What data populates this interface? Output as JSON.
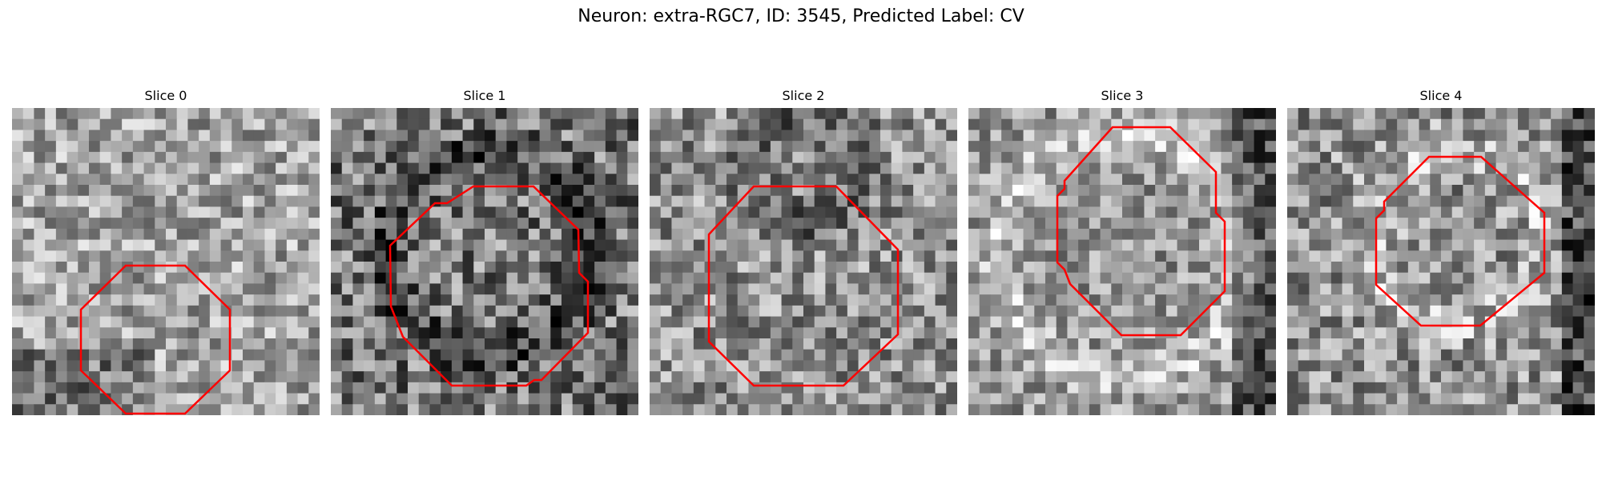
{
  "figure": {
    "title": "Neuron: extra-RGC7, ID: 3545, Predicted Label: CV"
  },
  "panels": [
    {
      "title": "Slice 0",
      "contour_color": "#ff0000"
    },
    {
      "title": "Slice 1",
      "contour_color": "#ff0000"
    },
    {
      "title": "Slice 2",
      "contour_color": "#ff0000"
    },
    {
      "title": "Slice 3",
      "contour_color": "#ff0000"
    },
    {
      "title": "Slice 4",
      "contour_color": "#ff0000"
    }
  ]
}
